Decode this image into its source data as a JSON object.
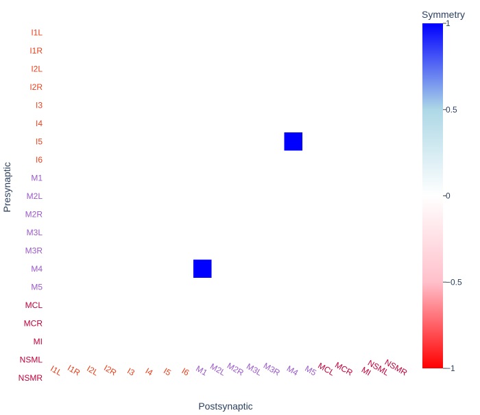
{
  "chart_data": {
    "type": "heatmap",
    "x_categories": [
      "I1L",
      "I1R",
      "I2L",
      "I2R",
      "I3",
      "I4",
      "I5",
      "I6",
      "M1",
      "M2L",
      "M2R",
      "M3L",
      "M3R",
      "M4",
      "M5",
      "MCL",
      "MCR",
      "MI",
      "NSML",
      "NSMR"
    ],
    "y_categories": [
      "I1L",
      "I1R",
      "I2L",
      "I2R",
      "I3",
      "I4",
      "I5",
      "I6",
      "M1",
      "M2L",
      "M2R",
      "M3L",
      "M3R",
      "M4",
      "M5",
      "MCL",
      "MCR",
      "MI",
      "NSML",
      "NSMR"
    ],
    "category_groups": {
      "I1L": "I",
      "I1R": "I",
      "I2L": "I",
      "I2R": "I",
      "I3": "I",
      "I4": "I",
      "I5": "I",
      "I6": "I",
      "M1": "M",
      "M2L": "M",
      "M2R": "M",
      "M3L": "M",
      "M3R": "M",
      "M4": "M",
      "M5": "M",
      "MCL": "N",
      "MCR": "N",
      "MI": "N",
      "NSML": "N",
      "NSMR": "N"
    },
    "group_colors": {
      "I": "#e8401c",
      "M": "#9b59c8",
      "N": "#c0003a"
    },
    "cells": [
      {
        "x": "M4",
        "y": "I5",
        "value": 1
      },
      {
        "x": "M1",
        "y": "M4",
        "value": 1
      }
    ],
    "xlabel": "Postsynaptic",
    "ylabel": "Presynaptic",
    "colorbar": {
      "title": "Symmetry",
      "range": [
        -1,
        1
      ],
      "ticks": [
        1,
        0.5,
        0,
        -0.5,
        -1
      ],
      "tick_labels": [
        "1",
        "0.5",
        "0",
        "−0.5",
        "−1"
      ],
      "colorscale": [
        [
          0,
          "#ff0000"
        ],
        [
          0.25,
          "#ffc0cb"
        ],
        [
          0.5,
          "#ffffff"
        ],
        [
          0.75,
          "#add8e6"
        ],
        [
          1,
          "#0000ff"
        ]
      ]
    }
  }
}
